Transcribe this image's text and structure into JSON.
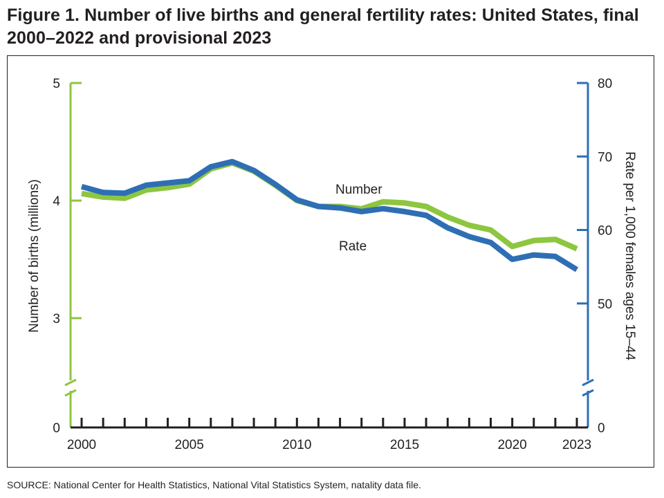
{
  "title": "Figure 1. Number of live births and general fertility rates: United States, final 2000–2022 and provisional 2023",
  "source": "SOURCE: National Center for Health Statistics, National Vital Statistics System, natality data file.",
  "colors": {
    "number": "#8dc63f",
    "rate": "#2e6eb5",
    "left_axis": "#8dc63f",
    "right_axis": "#2e6eb5",
    "text": "#231f20"
  },
  "chart_data": {
    "type": "line",
    "x": [
      2000,
      2001,
      2002,
      2003,
      2004,
      2005,
      2006,
      2007,
      2008,
      2009,
      2010,
      2011,
      2012,
      2013,
      2014,
      2015,
      2016,
      2017,
      2018,
      2019,
      2020,
      2021,
      2022,
      2023
    ],
    "x_tick_labels": [
      "2000",
      "2005",
      "2010",
      "2015",
      "2020",
      "2023"
    ],
    "series": [
      {
        "name": "Number",
        "axis": "left",
        "color": "#8dc63f",
        "values": [
          4.06,
          4.03,
          4.02,
          4.09,
          4.11,
          4.14,
          4.27,
          4.32,
          4.25,
          4.13,
          4.0,
          3.95,
          3.95,
          3.93,
          3.99,
          3.98,
          3.95,
          3.86,
          3.79,
          3.75,
          3.61,
          3.66,
          3.67,
          3.59
        ]
      },
      {
        "name": "Rate",
        "axis": "right",
        "color": "#2e6eb5",
        "values": [
          65.9,
          65.1,
          65.0,
          66.1,
          66.4,
          66.7,
          68.6,
          69.3,
          68.1,
          66.2,
          64.1,
          63.2,
          63.0,
          62.5,
          62.9,
          62.5,
          62.0,
          60.3,
          59.1,
          58.3,
          56.0,
          56.6,
          56.4,
          54.6
        ]
      }
    ],
    "left_axis": {
      "label": "Number of births (millions)",
      "ticks": [
        0,
        3,
        4,
        5
      ],
      "tick_labels": [
        "0",
        "3",
        "4",
        "5"
      ],
      "range": [
        0,
        5
      ],
      "break_between": [
        0,
        3
      ],
      "range_above_break": [
        2.5,
        5
      ]
    },
    "right_axis": {
      "label": "Rate per 1,000 females ages 15–44",
      "ticks": [
        0,
        50,
        60,
        70,
        80
      ],
      "tick_labels": [
        "0",
        "50",
        "60",
        "70",
        "80"
      ],
      "range": [
        0,
        80
      ],
      "break_between": [
        0,
        50
      ],
      "range_above_break": [
        40,
        80
      ]
    },
    "grid": false,
    "legend": "inline labels"
  }
}
